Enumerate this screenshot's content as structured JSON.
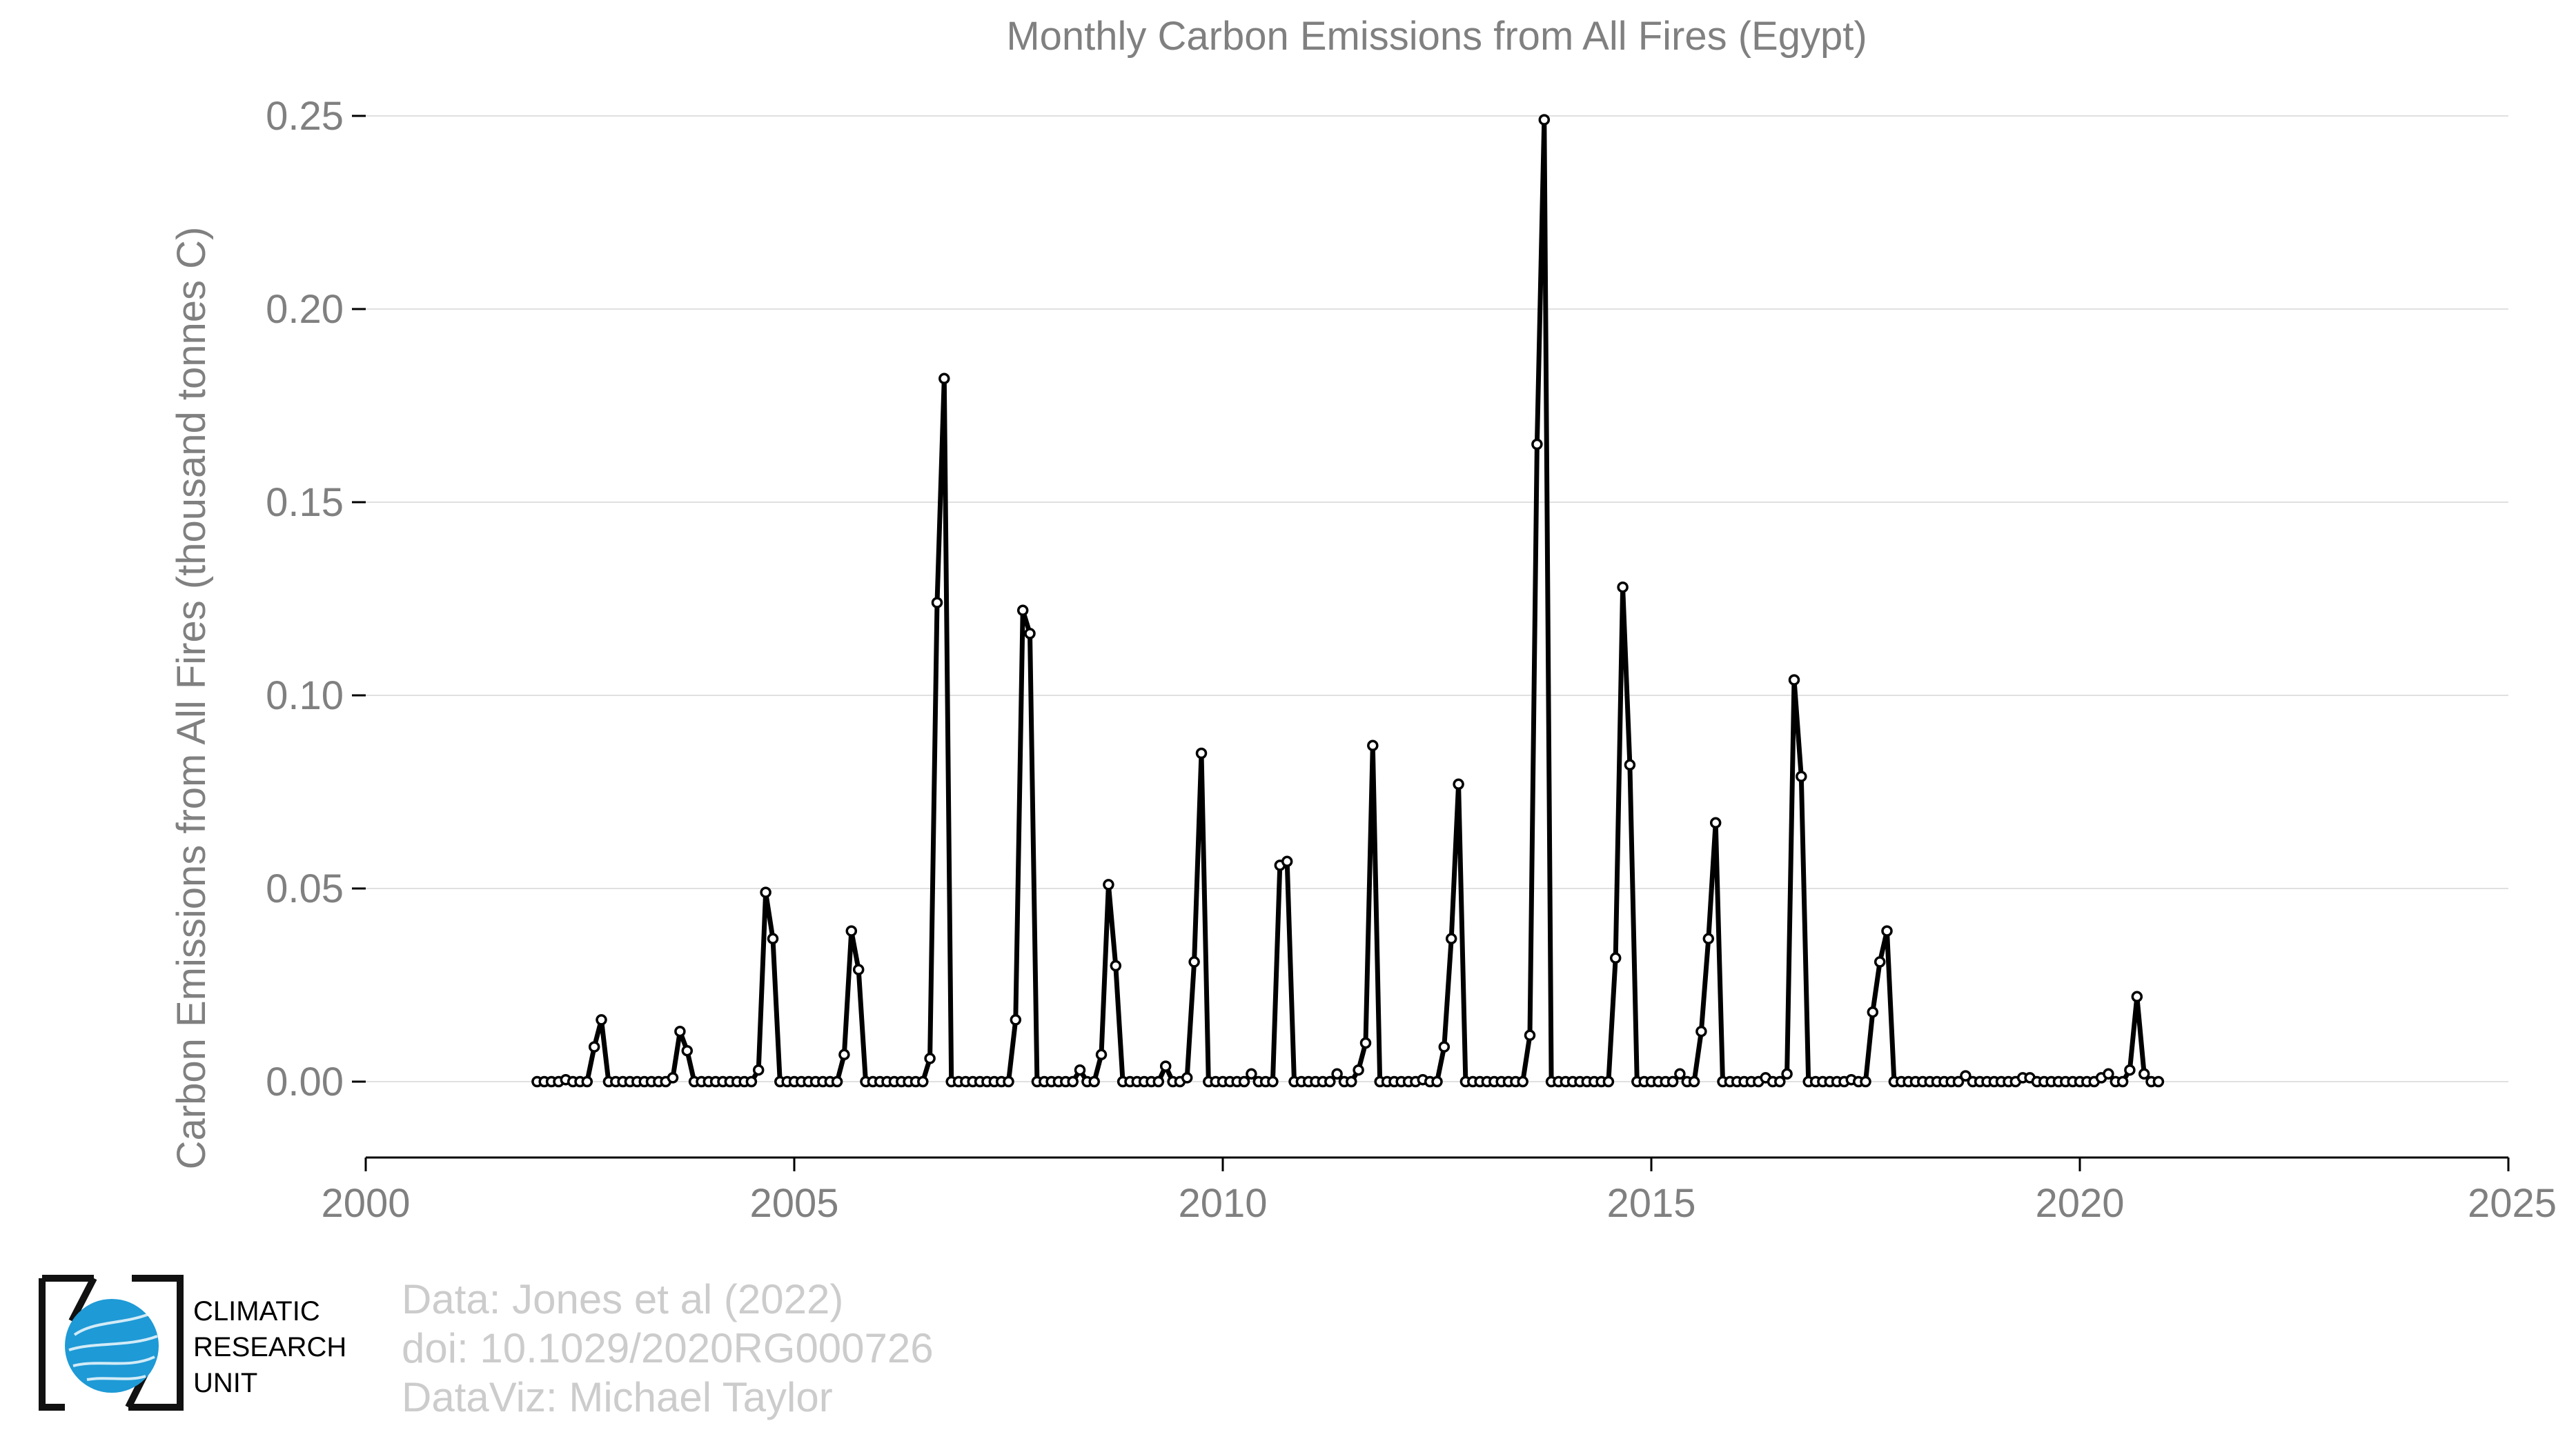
{
  "chart_data": {
    "type": "line",
    "title": "Monthly Carbon Emissions from All Fires (Egypt)",
    "xlabel": "",
    "ylabel": "Carbon Emissions from All Fires (thousand tonnes C)",
    "xlim": [
      2000,
      2025
    ],
    "ylim": [
      -0.02,
      0.25
    ],
    "x_ticks": [
      "2000",
      "2005",
      "2010",
      "2015",
      "2020",
      "2025"
    ],
    "y_ticks": [
      "0.00",
      "0.05",
      "0.10",
      "0.15",
      "0.20",
      "0.25"
    ],
    "grid": "horizontal",
    "start_year": 2002,
    "values": [
      0,
      0,
      0,
      0,
      0.0005,
      0,
      0,
      0,
      0.009,
      0.016,
      0,
      0,
      0,
      0,
      0,
      0,
      0,
      0,
      0,
      0.001,
      0.013,
      0.008,
      0,
      0,
      0,
      0,
      0,
      0,
      0,
      0,
      0,
      0.003,
      0.049,
      0.037,
      0,
      0,
      0,
      0,
      0,
      0,
      0,
      0,
      0,
      0.007,
      0.039,
      0.029,
      0,
      0,
      0,
      0,
      0,
      0,
      0,
      0,
      0,
      0.006,
      0.124,
      0.182,
      0,
      0,
      0,
      0,
      0,
      0,
      0,
      0,
      0,
      0.016,
      0.122,
      0.116,
      0,
      0,
      0,
      0,
      0,
      0,
      0.003,
      0,
      0,
      0.007,
      0.051,
      0.03,
      0,
      0,
      0,
      0,
      0,
      0,
      0.004,
      0,
      0,
      0.001,
      0.031,
      0.085,
      0,
      0,
      0,
      0,
      0,
      0,
      0.002,
      0,
      0,
      0,
      0.056,
      0.057,
      0,
      0,
      0,
      0,
      0,
      0,
      0.002,
      0,
      0,
      0.003,
      0.01,
      0.087,
      0,
      0,
      0,
      0,
      0,
      0,
      0.0005,
      0,
      0,
      0.009,
      0.037,
      0.077,
      0,
      0,
      0,
      0,
      0,
      0,
      0,
      0,
      0,
      0.012,
      0.165,
      0.249,
      0,
      0,
      0,
      0,
      0,
      0,
      0,
      0,
      0,
      0.032,
      0.128,
      0.082,
      0,
      0,
      0,
      0,
      0,
      0,
      0.002,
      0,
      0,
      0.013,
      0.037,
      0.067,
      0,
      0,
      0,
      0,
      0,
      0,
      0.001,
      0,
      0,
      0.002,
      0.104,
      0.079,
      0,
      0,
      0,
      0,
      0,
      0,
      0.0005,
      0,
      0,
      0.018,
      0.031,
      0.039,
      0,
      0,
      0,
      0,
      0,
      0,
      0,
      0,
      0,
      0,
      0.0015,
      0,
      0,
      0,
      0,
      0,
      0,
      0,
      0.001,
      0.001,
      0,
      0,
      0,
      0,
      0,
      0,
      0,
      0,
      0,
      0.001,
      0.002,
      0,
      0,
      0.003,
      0.022,
      0.002,
      0,
      0
    ]
  },
  "credits": {
    "line1": "Data: Jones et al (2022)",
    "line2": "doi: 10.1029/2020RG000726",
    "line3": "DataViz: Michael Taylor"
  },
  "logo": {
    "line1": "CLIMATIC",
    "line2": "RESEARCH",
    "line3": "UNIT",
    "color": "#1e9ad6"
  }
}
